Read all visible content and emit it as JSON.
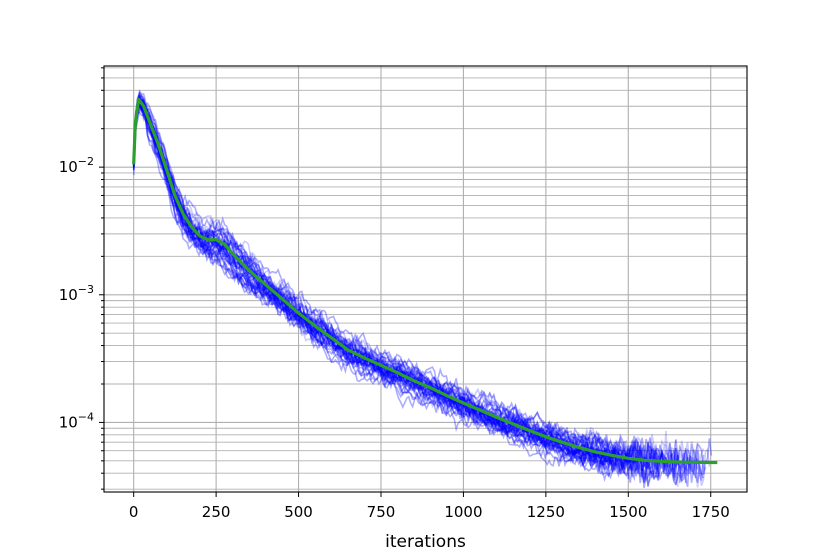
{
  "chart_data": {
    "type": "line",
    "title": "",
    "xlabel": "iterations",
    "ylabel": "",
    "yscale": "log",
    "xlim": [
      -90,
      1860
    ],
    "ylim": [
      2.85e-05,
      0.062
    ],
    "xticks": [
      {
        "value": 0,
        "label": "0"
      },
      {
        "value": 250,
        "label": "250"
      },
      {
        "value": 500,
        "label": "500"
      },
      {
        "value": 750,
        "label": "750"
      },
      {
        "value": 1000,
        "label": "1000"
      },
      {
        "value": 1250,
        "label": "1250"
      },
      {
        "value": 1500,
        "label": "1500"
      },
      {
        "value": 1750,
        "label": "1750"
      }
    ],
    "yticks": [
      {
        "value": 0.0001,
        "base": "10",
        "exp": "−4"
      },
      {
        "value": 0.001,
        "base": "10",
        "exp": "−3"
      },
      {
        "value": 0.01,
        "base": "10",
        "exp": "−2"
      }
    ],
    "grid": "major and minor",
    "colors": {
      "runs": "#0000ff",
      "mean": "#2ca02c",
      "grid": "#b0b0b0"
    },
    "run_count": 40,
    "series": [
      {
        "role": "mean",
        "x": [
          0,
          5,
          15,
          30,
          50,
          75,
          100,
          125,
          150,
          175,
          200,
          225,
          250,
          275,
          300,
          350,
          400,
          450,
          500,
          550,
          600,
          650,
          700,
          750,
          800,
          850,
          900,
          950,
          1000,
          1050,
          1100,
          1150,
          1200,
          1250,
          1300,
          1350,
          1400,
          1450,
          1500,
          1550,
          1600,
          1650,
          1700,
          1750,
          1770
        ],
        "y": [
          0.0105,
          0.022,
          0.034,
          0.03,
          0.022,
          0.015,
          0.0095,
          0.006,
          0.0043,
          0.0034,
          0.0029,
          0.0027,
          0.0027,
          0.0025,
          0.0021,
          0.00155,
          0.0012,
          0.00093,
          0.00072,
          0.00057,
          0.00046,
          0.00037,
          0.00032,
          0.00028,
          0.000245,
          0.000212,
          0.000187,
          0.000162,
          0.000142,
          0.000125,
          0.00011,
          9.75e-05,
          8.65e-05,
          7.72e-05,
          6.98e-05,
          6.37e-05,
          5.88e-05,
          5.53e-05,
          5.23e-05,
          5.05e-05,
          4.95e-05,
          4.9e-05,
          4.87e-05,
          4.85e-05,
          4.85e-05
        ]
      }
    ]
  }
}
